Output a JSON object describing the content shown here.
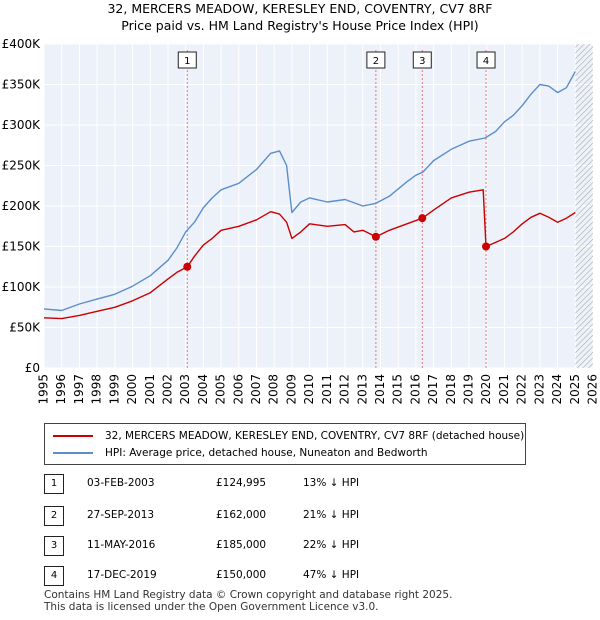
{
  "title_line1": "32, MERCERS MEADOW, KERESLEY END, COVENTRY, CV7 8RF",
  "title_line2": "Price paid vs. HM Land Registry's House Price Index (HPI)",
  "colors": {
    "property": "#cc0000",
    "hpi": "#5b8fc9",
    "vline": "#e07a7a",
    "grid": "#d9d9d9",
    "plot_bg": "#edf1f9",
    "hatch": "#aaaaaa"
  },
  "chart_data": {
    "type": "line",
    "y_ticks": [
      "£0",
      "£50K",
      "£100K",
      "£150K",
      "£200K",
      "£250K",
      "£300K",
      "£350K",
      "£400K"
    ],
    "x_ticks": [
      "1995",
      "1996",
      "1997",
      "1998",
      "1999",
      "2000",
      "2001",
      "2002",
      "2003",
      "2004",
      "2005",
      "2006",
      "2007",
      "2008",
      "2009",
      "2010",
      "2011",
      "2012",
      "2013",
      "2014",
      "2015",
      "2016",
      "2017",
      "2018",
      "2019",
      "2020",
      "2021",
      "2022",
      "2023",
      "2024",
      "2025",
      "2026"
    ],
    "xlim": [
      1995,
      2026
    ],
    "ylim": [
      0,
      400000
    ],
    "forecast_from": 2025.0,
    "series": [
      {
        "name": "HPI: Average price, detached house, Nuneaton and Bedworth",
        "points": [
          [
            1995.0,
            73000
          ],
          [
            1996.0,
            71000
          ],
          [
            1997.0,
            79000
          ],
          [
            1998.0,
            85000
          ],
          [
            1999.0,
            91000
          ],
          [
            2000.0,
            101000
          ],
          [
            2001.0,
            114000
          ],
          [
            2002.0,
            133000
          ],
          [
            2002.5,
            148000
          ],
          [
            2003.0,
            168000
          ],
          [
            2003.5,
            180000
          ],
          [
            2004.0,
            198000
          ],
          [
            2004.5,
            210000
          ],
          [
            2005.0,
            220000
          ],
          [
            2006.0,
            228000
          ],
          [
            2007.0,
            245000
          ],
          [
            2007.8,
            265000
          ],
          [
            2008.3,
            268000
          ],
          [
            2008.7,
            250000
          ],
          [
            2009.0,
            192000
          ],
          [
            2009.5,
            205000
          ],
          [
            2010.0,
            210000
          ],
          [
            2011.0,
            205000
          ],
          [
            2012.0,
            208000
          ],
          [
            2013.0,
            200000
          ],
          [
            2013.7,
            203000
          ],
          [
            2014.5,
            212000
          ],
          [
            2015.5,
            230000
          ],
          [
            2016.0,
            238000
          ],
          [
            2016.4,
            242000
          ],
          [
            2017.0,
            256000
          ],
          [
            2018.0,
            270000
          ],
          [
            2019.0,
            280000
          ],
          [
            2019.9,
            284000
          ],
          [
            2020.5,
            292000
          ],
          [
            2021.0,
            304000
          ],
          [
            2021.5,
            312000
          ],
          [
            2022.0,
            324000
          ],
          [
            2022.5,
            338000
          ],
          [
            2023.0,
            350000
          ],
          [
            2023.5,
            348000
          ],
          [
            2024.0,
            340000
          ],
          [
            2024.5,
            346000
          ],
          [
            2025.0,
            366000
          ]
        ]
      },
      {
        "name": "32, MERCERS MEADOW, KERESLEY END, COVENTRY, CV7 8RF (detached house)",
        "points": [
          [
            1995.0,
            62000
          ],
          [
            1996.0,
            61000
          ],
          [
            1997.0,
            65000
          ],
          [
            1998.0,
            70000
          ],
          [
            1999.0,
            75000
          ],
          [
            2000.0,
            83000
          ],
          [
            2001.0,
            93000
          ],
          [
            2002.0,
            110000
          ],
          [
            2002.5,
            118000
          ],
          [
            2003.09,
            124995
          ],
          [
            2003.5,
            138000
          ],
          [
            2004.0,
            152000
          ],
          [
            2004.5,
            160000
          ],
          [
            2005.0,
            170000
          ],
          [
            2006.0,
            175000
          ],
          [
            2007.0,
            183000
          ],
          [
            2007.8,
            193000
          ],
          [
            2008.3,
            190000
          ],
          [
            2008.7,
            180000
          ],
          [
            2009.0,
            160000
          ],
          [
            2009.5,
            168000
          ],
          [
            2010.0,
            178000
          ],
          [
            2011.0,
            175000
          ],
          [
            2012.0,
            177000
          ],
          [
            2012.5,
            168000
          ],
          [
            2013.0,
            170000
          ],
          [
            2013.74,
            162000
          ],
          [
            2014.5,
            170000
          ],
          [
            2015.5,
            178000
          ],
          [
            2016.36,
            185000
          ],
          [
            2017.0,
            195000
          ],
          [
            2018.0,
            210000
          ],
          [
            2019.0,
            217000
          ],
          [
            2019.8,
            220000
          ],
          [
            2019.96,
            150000
          ],
          [
            2020.5,
            155000
          ],
          [
            2021.0,
            160000
          ],
          [
            2021.5,
            168000
          ],
          [
            2022.0,
            178000
          ],
          [
            2022.5,
            186000
          ],
          [
            2023.0,
            191000
          ],
          [
            2023.5,
            186000
          ],
          [
            2024.0,
            180000
          ],
          [
            2024.5,
            185000
          ],
          [
            2025.0,
            192000
          ]
        ]
      }
    ],
    "sales": [
      {
        "id": "1",
        "date": "03-FEB-2003",
        "x": 2003.09,
        "price": 124995
      },
      {
        "id": "2",
        "date": "27-SEP-2013",
        "x": 2013.74,
        "price": 162000
      },
      {
        "id": "3",
        "date": "11-MAY-2016",
        "x": 2016.36,
        "price": 185000
      },
      {
        "id": "4",
        "date": "17-DEC-2019",
        "x": 2019.96,
        "price": 150000
      }
    ]
  },
  "legend": {
    "property_label": "32, MERCERS MEADOW, KERESLEY END, COVENTRY, CV7 8RF (detached house)",
    "hpi_label": "HPI: Average price, detached house, Nuneaton and Bedworth"
  },
  "sales_table": [
    {
      "id": "1",
      "date": "03-FEB-2003",
      "price": "£124,995",
      "hpi_diff": "13% ↓ HPI"
    },
    {
      "id": "2",
      "date": "27-SEP-2013",
      "price": "£162,000",
      "hpi_diff": "21% ↓ HPI"
    },
    {
      "id": "3",
      "date": "11-MAY-2016",
      "price": "£185,000",
      "hpi_diff": "22% ↓ HPI"
    },
    {
      "id": "4",
      "date": "17-DEC-2019",
      "price": "£150,000",
      "hpi_diff": "47% ↓ HPI"
    }
  ],
  "footer_line1": "Contains HM Land Registry data © Crown copyright and database right 2025.",
  "footer_line2": "This data is licensed under the Open Government Licence v3.0."
}
